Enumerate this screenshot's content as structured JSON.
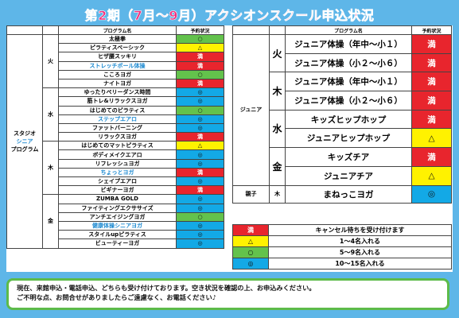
{
  "title": "第2期（7月～9月）アクシオンスクール申込状況",
  "headers": {
    "program": "プログラム名",
    "status": "予約状況"
  },
  "studio": {
    "group_line1": "スタジオ",
    "group_line2": "シニア",
    "group_line3": "プログラム",
    "days": [
      {
        "day": "火",
        "rows": [
          {
            "name": "太極拳",
            "status": "○",
            "color": "green"
          },
          {
            "name": "ピラティスベーシック",
            "status": "△",
            "color": "yellow"
          },
          {
            "name": "ヒザ腰スッキリ",
            "status": "満",
            "color": "red"
          },
          {
            "name": "ストレッチポール体操",
            "status": "満",
            "color": "red",
            "blue": true
          },
          {
            "name": "こころヨガ",
            "status": "○",
            "color": "green"
          },
          {
            "name": "ナイトヨガ",
            "status": "満",
            "color": "red"
          }
        ]
      },
      {
        "day": "水",
        "rows": [
          {
            "name": "ゆったりペリーダンス時間",
            "status": "◎",
            "color": "cyan"
          },
          {
            "name": "筋トレ&リラックスヨガ",
            "status": "◎",
            "color": "cyan"
          },
          {
            "name": "はじめてのピラティス",
            "status": "○",
            "color": "green"
          },
          {
            "name": "ステップエアロ",
            "status": "◎",
            "color": "cyan",
            "blue": true
          },
          {
            "name": "ファットバーニング",
            "status": "◎",
            "color": "cyan"
          },
          {
            "name": "リラックスヨガ",
            "status": "満",
            "color": "red"
          }
        ]
      },
      {
        "day": "木",
        "rows": [
          {
            "name": "はじめてのマットピラティス",
            "status": "△",
            "color": "yellow"
          },
          {
            "name": "ボディメイクエアロ",
            "status": "◎",
            "color": "cyan"
          },
          {
            "name": "リフレッシュヨガ",
            "status": "◎",
            "color": "cyan"
          },
          {
            "name": "ちょっとヨガ",
            "status": "満",
            "color": "red",
            "blue": true
          },
          {
            "name": "シェイプエアロ",
            "status": "◎",
            "color": "cyan"
          },
          {
            "name": "ビギナーヨガ",
            "status": "満",
            "color": "red"
          }
        ]
      },
      {
        "day": "金",
        "rows": [
          {
            "name": "ZUMBA GOLD",
            "status": "◎",
            "color": "cyan"
          },
          {
            "name": "ファイティングエクササイズ",
            "status": "◎",
            "color": "cyan"
          },
          {
            "name": "アンチエイジングヨガ",
            "status": "○",
            "color": "green"
          },
          {
            "name": "健康体操シニアヨガ",
            "status": "◎",
            "color": "cyan",
            "blue": true
          },
          {
            "name": "スタイルupピラティス",
            "status": "◎",
            "color": "cyan"
          },
          {
            "name": "ビューティーヨガ",
            "status": "◎",
            "color": "cyan"
          }
        ]
      }
    ]
  },
  "junior": {
    "group": "ジュニア",
    "days": [
      {
        "day": "火",
        "rows": [
          {
            "name": "ジュニア体操（年中～小１）",
            "status": "満",
            "color": "red"
          },
          {
            "name": "ジュニア体操（小２～小６）",
            "status": "満",
            "color": "red"
          }
        ]
      },
      {
        "day": "木",
        "rows": [
          {
            "name": "ジュニア体操（年中～小１）",
            "status": "満",
            "color": "red"
          },
          {
            "name": "ジュニア体操（小２～小６）",
            "status": "満",
            "color": "red"
          }
        ]
      },
      {
        "day": "水",
        "rows": [
          {
            "name": "キッズヒップホップ",
            "status": "満",
            "color": "red"
          },
          {
            "name": "ジュニアヒップホップ",
            "status": "△",
            "color": "yellow"
          }
        ]
      },
      {
        "day": "金",
        "rows": [
          {
            "name": "キッズチア",
            "status": "満",
            "color": "red"
          },
          {
            "name": "ジュニアチア",
            "status": "△",
            "color": "yellow"
          }
        ]
      }
    ]
  },
  "oyako": {
    "group": "親子",
    "day": "木",
    "name": "まねっこヨガ",
    "status": "◎",
    "color": "cyan"
  },
  "legend": [
    {
      "symbol": "満",
      "text": "キャンセル待ちを受け付けます",
      "color": "red"
    },
    {
      "symbol": "△",
      "text": "1～4名入れる",
      "color": "yellow"
    },
    {
      "symbol": "○",
      "text": "5～9名入れる",
      "color": "green"
    },
    {
      "symbol": "◎",
      "text": "10～15名入れる",
      "color": "cyan"
    }
  ],
  "notice": {
    "line1": "現在、来館申込・電話申込、どちらも受け付けております。空き状況を確認の上、お申込みください。",
    "line2": "ご不明な点、お問合せがありましたらご遠慮なく、お電話ください♪"
  },
  "colors": {
    "red": "#e8252d",
    "yellow": "#fff200",
    "green": "#63c24c",
    "cyan": "#13a9e6",
    "title": "#f2317d",
    "background": "#5eb6e8",
    "notice_border": "#5dbb4a"
  }
}
